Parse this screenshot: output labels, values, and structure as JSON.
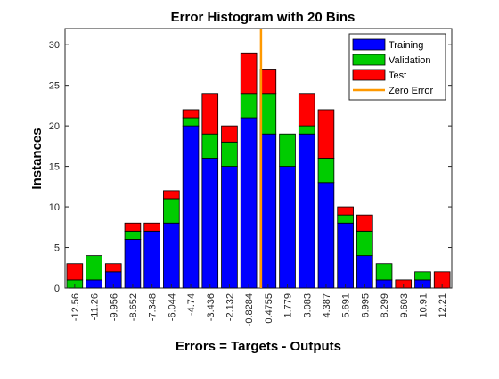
{
  "chart_data": {
    "type": "bar",
    "stacked": true,
    "title": "Error Histogram with 20 Bins",
    "xlabel": "Errors = Targets - Outputs",
    "ylabel": "Instances",
    "ylim": [
      0,
      32
    ],
    "yticks": [
      0,
      5,
      10,
      15,
      20,
      25,
      30
    ],
    "grid": false,
    "legend_position": "top-right",
    "categories": [
      "-12.56",
      "-11.26",
      "-9.956",
      "-8.652",
      "-7.348",
      "-6.044",
      "-4.74",
      "-3.436",
      "-2.132",
      "-0.8284",
      "0.4755",
      "1.779",
      "3.083",
      "4.387",
      "5.691",
      "6.995",
      "8.299",
      "9.603",
      "10.91",
      "12.21"
    ],
    "series": [
      {
        "name": "Training",
        "color": "#0000ff",
        "values": [
          0,
          1,
          2,
          6,
          7,
          8,
          20,
          16,
          15,
          21,
          19,
          15,
          19,
          13,
          8,
          4,
          1,
          0,
          1,
          0
        ]
      },
      {
        "name": "Validation",
        "color": "#00cc00",
        "values": [
          1,
          3,
          0,
          1,
          0,
          3,
          1,
          3,
          3,
          3,
          5,
          4,
          1,
          3,
          1,
          3,
          2,
          0,
          1,
          0
        ]
      },
      {
        "name": "Test",
        "color": "#ff0000",
        "values": [
          2,
          0,
          1,
          1,
          1,
          1,
          1,
          5,
          2,
          5,
          3,
          0,
          4,
          6,
          1,
          2,
          0,
          1,
          0,
          2
        ]
      }
    ],
    "reference_line": {
      "name": "Zero Error",
      "color": "#ff9900",
      "x": 0
    }
  }
}
